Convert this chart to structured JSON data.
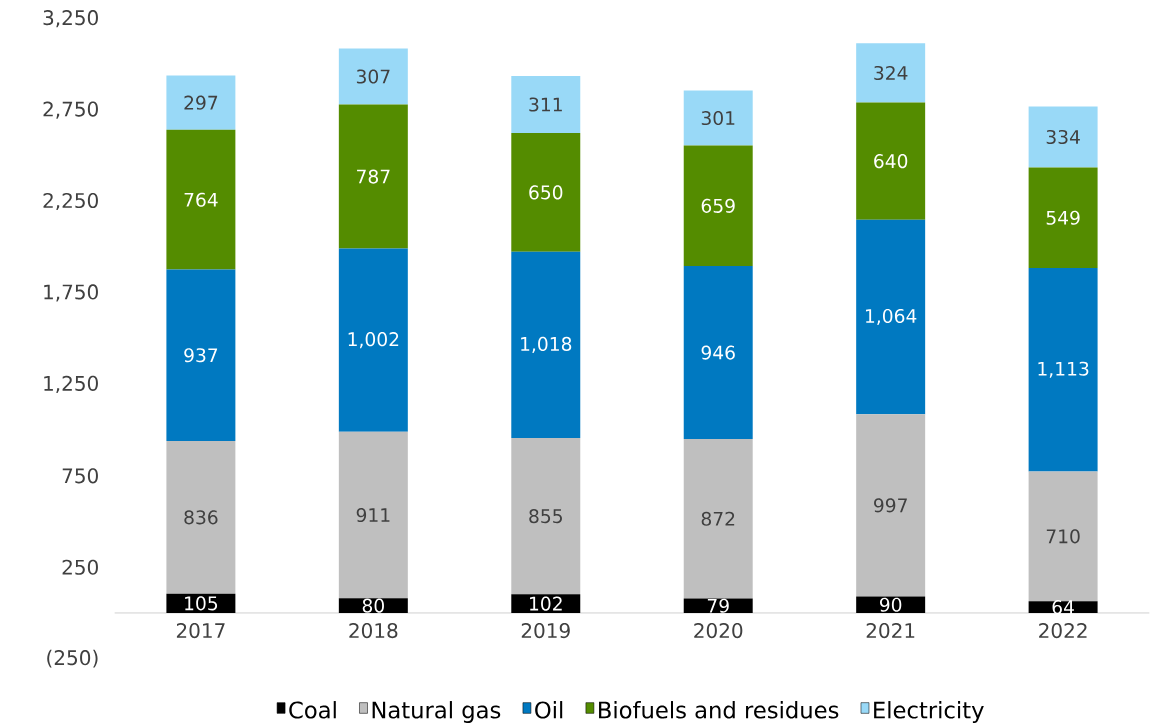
{
  "chart_data": {
    "type": "bar",
    "stacked": true,
    "categories": [
      "2017",
      "2018",
      "2019",
      "2020",
      "2021",
      "2022"
    ],
    "series": [
      {
        "name": "Coal",
        "color": "#000000",
        "values": [
          105,
          80,
          102,
          79,
          90,
          64
        ],
        "value_labels": [
          "105",
          "80",
          "102",
          "79",
          "90",
          "64"
        ]
      },
      {
        "name": "Natural gas",
        "color": "#bfbfbf",
        "values": [
          836,
          911,
          855,
          872,
          997,
          710
        ],
        "value_labels": [
          "836",
          "911",
          "855",
          "872",
          "997",
          "710"
        ]
      },
      {
        "name": "Oil",
        "color": "#0079c1",
        "values": [
          937,
          1002,
          1018,
          946,
          1064,
          1113
        ],
        "value_labels": [
          "937",
          "1,002",
          "1,018",
          "946",
          "1,064",
          "1,113"
        ]
      },
      {
        "name": "Biofuels and residues",
        "color": "#548c00",
        "values": [
          764,
          787,
          650,
          659,
          640,
          549
        ],
        "value_labels": [
          "764",
          "787",
          "650",
          "659",
          "640",
          "549"
        ]
      },
      {
        "name": "Electricity",
        "color": "#99d9f7",
        "values": [
          297,
          307,
          311,
          301,
          324,
          334
        ],
        "value_labels": [
          "297",
          "307",
          "311",
          "301",
          "324",
          "334"
        ]
      }
    ],
    "ylim": [
      -250,
      3250
    ],
    "yticks": [
      {
        "value": -250,
        "label": "(250)"
      },
      250,
      750,
      {
        "value": 1250,
        "label": "1,250"
      },
      {
        "value": 1750,
        "label": "1,750"
      },
      {
        "value": 2250,
        "label": "2,250"
      },
      {
        "value": 2750,
        "label": "2,750"
      },
      {
        "value": 3250,
        "label": "3,250"
      }
    ],
    "grid": false,
    "legend": "bottom"
  }
}
